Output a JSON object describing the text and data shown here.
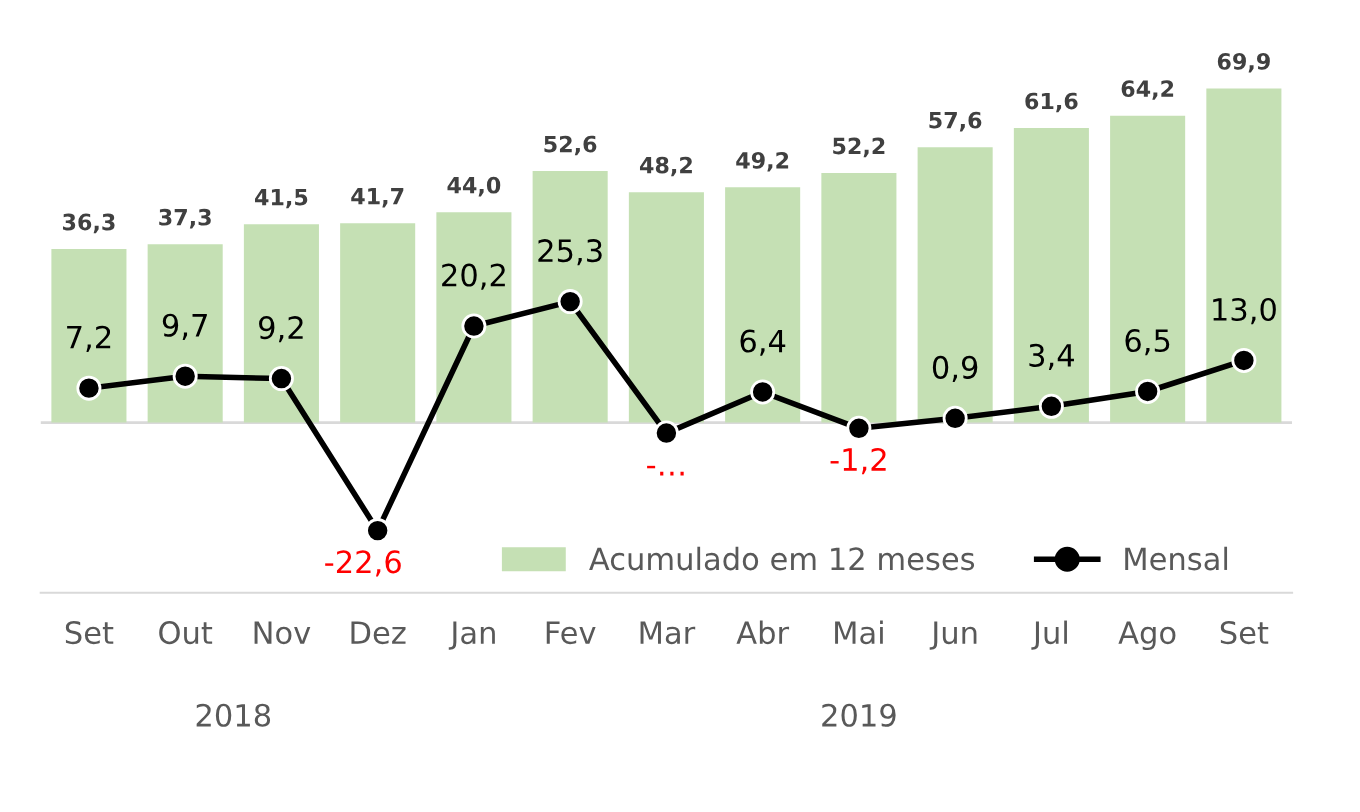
{
  "chart_data": {
    "type": "bar",
    "categories": [
      "Set",
      "Out",
      "Nov",
      "Dez",
      "Jan",
      "Fev",
      "Mar",
      "Abr",
      "Mai",
      "Jun",
      "Jul",
      "Ago",
      "Set"
    ],
    "series": [
      {
        "name": "Acumulado em 12 meses",
        "color": "#c5e0b4",
        "values": [
          36.3,
          37.3,
          41.5,
          41.7,
          44.0,
          52.6,
          48.2,
          49.2,
          52.2,
          57.6,
          61.6,
          64.2,
          69.9
        ],
        "value_labels": [
          "36,3",
          "37,3",
          "41,5",
          "41,7",
          "44,0",
          "52,6",
          "48,2",
          "49,2",
          "52,2",
          "57,6",
          "61,6",
          "64,2",
          "69,9"
        ]
      },
      {
        "name": "Mensal",
        "type": "line",
        "color": "#000000",
        "marker": "circle",
        "values": [
          7.2,
          9.7,
          9.2,
          -22.6,
          20.2,
          25.3,
          -2.2,
          6.4,
          -1.2,
          0.9,
          3.4,
          6.5,
          13.0
        ],
        "value_labels": [
          "7,2",
          "9,7",
          "9,2",
          "-22,6",
          "20,2",
          "25,3",
          "-…",
          "6,4",
          "-1,2",
          "0,9",
          "3,4",
          "6,5",
          "13,0"
        ]
      }
    ],
    "annotations": [
      "2018",
      "2019"
    ],
    "legend": "bottom",
    "grid": false
  }
}
